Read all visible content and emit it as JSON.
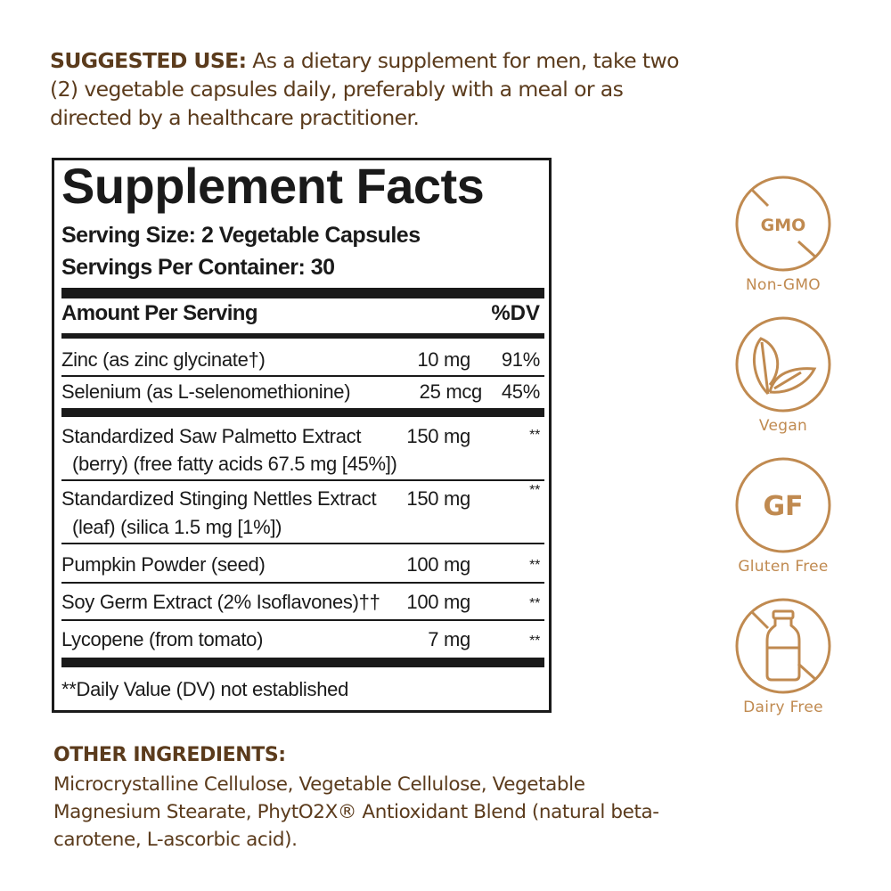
{
  "suggested_use": {
    "heading": "SUGGESTED USE:",
    "text": " As a dietary supplement for men, take two (2) vegetable capsules daily, preferably with a meal or as directed by a healthcare practitioner."
  },
  "facts": {
    "title": "Supplement Facts",
    "serving_size": "Serving Size: 2 Vegetable Capsules",
    "servings_per_container": "Servings Per Container: 30",
    "amount_header": "Amount Per Serving",
    "dv_header": "%DV",
    "rows": [
      {
        "name": "Zinc (as zinc glycinate†)",
        "amount": "10 mg",
        "dv": "91%"
      },
      {
        "name": "Selenium (as L-selenomethionine)",
        "amount": "25 mcg",
        "dv": "45%"
      },
      {
        "name": "Standardized Saw Palmetto Extract",
        "sub": "(berry) (free fatty acids 67.5 mg [45%])",
        "amount": "150 mg",
        "dv": "**"
      },
      {
        "name": "Standardized Stinging Nettles Extract",
        "sub": "(leaf) (silica 1.5 mg [1%])",
        "amount": "150 mg",
        "dv": "**"
      },
      {
        "name": "Pumpkin Powder (seed)",
        "amount": "100 mg",
        "dv": "**"
      },
      {
        "name": "Soy Germ Extract (2% Isoflavones)††",
        "amount": "100 mg",
        "dv": "**"
      },
      {
        "name": "Lycopene (from tomato)",
        "amount": "7 mg",
        "dv": "**"
      }
    ],
    "footnote": "**Daily Value (DV) not established"
  },
  "other_ingredients": {
    "heading": "OTHER INGREDIENTS:",
    "text": "Microcrystalline Cellulose, Vegetable Cellulose, Vegetable Magnesium Stearate, PhytO2X® Antioxidant Blend (natural beta-carotene, L-ascorbic acid)."
  },
  "badges": [
    {
      "icon": "no-gmo-icon",
      "glyph": "GMO",
      "label": "Non-GMO"
    },
    {
      "icon": "leaf-icon",
      "label": "Vegan"
    },
    {
      "icon": "gluten-free-icon",
      "glyph": "GF",
      "label": "Gluten Free"
    },
    {
      "icon": "no-milk-bottle-icon",
      "label": "Dairy Free"
    }
  ],
  "colors": {
    "text_brown": "#5b3b1c",
    "badge_gold": "#c08a50",
    "label_black": "#1a1a1a"
  }
}
